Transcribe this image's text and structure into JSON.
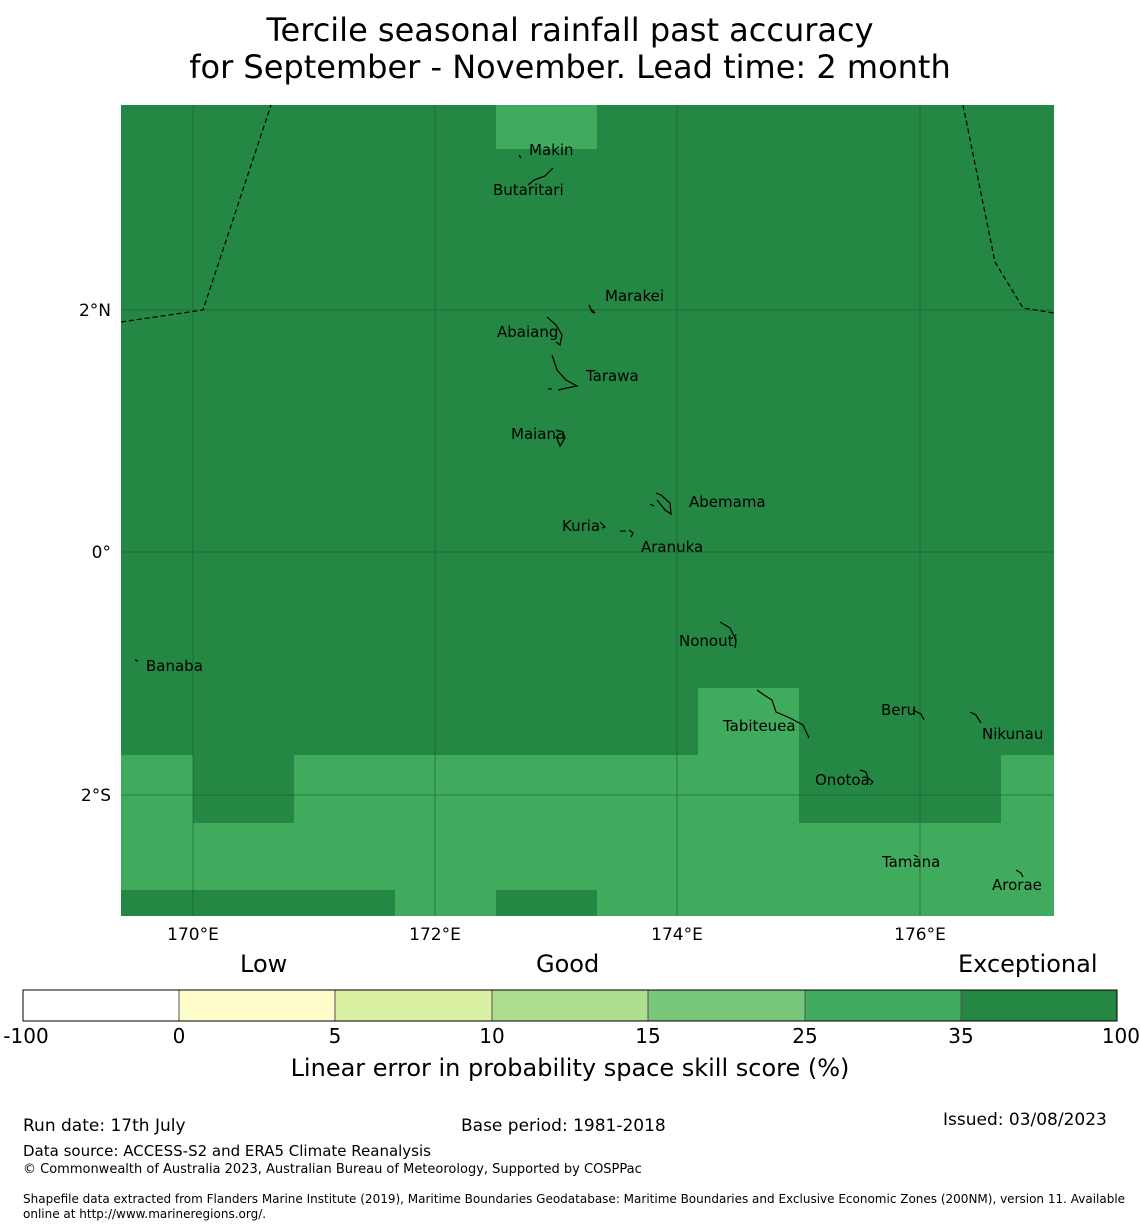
{
  "title": {
    "line1": "Tercile seasonal rainfall past accuracy",
    "line2": "for September - November. Lead time: 2 month"
  },
  "map": {
    "lon_ticks": [
      "170°E",
      "172°E",
      "174°E",
      "176°E"
    ],
    "lat_ticks": [
      "2°N",
      "0°",
      "2°S"
    ],
    "places": [
      {
        "name": "Makin"
      },
      {
        "name": "Butaritari"
      },
      {
        "name": "Marakei"
      },
      {
        "name": "Abaiang"
      },
      {
        "name": "Tarawa"
      },
      {
        "name": "Maiana"
      },
      {
        "name": "Abemama"
      },
      {
        "name": "Kuria"
      },
      {
        "name": "Aranuka"
      },
      {
        "name": "Nonouti"
      },
      {
        "name": "Banaba"
      },
      {
        "name": "Beru"
      },
      {
        "name": "Tabiteuea"
      },
      {
        "name": "Nikunau"
      },
      {
        "name": "Onotoa"
      },
      {
        "name": "Tamana"
      },
      {
        "name": "Arorae"
      }
    ],
    "colors": {
      "cat_35_100": "#248743",
      "cat_25_35": "#40aa5d"
    }
  },
  "colorbar": {
    "categories": [
      "Low",
      "Good",
      "Exceptional"
    ],
    "ticks": [
      "-100",
      "0",
      "5",
      "10",
      "15",
      "25",
      "35",
      "100"
    ],
    "colors": [
      "#ffffff",
      "#fffccc",
      "#d9f0a3",
      "#addd8e",
      "#78c679",
      "#40aa5d",
      "#248743"
    ],
    "label": "Linear error in probability space skill score (%)"
  },
  "footer": {
    "run_date": "Run date: 17th July",
    "base_period": "Base period: 1981-2018",
    "issued": "Issued: 03/08/2023",
    "data_source": "Data source: ACCESS-S2 and ERA5 Climate Reanalysis",
    "copyright": "© Commonwealth of Australia 2023, Australian Bureau of Meteorology, Supported by COSPPac",
    "shapefile": "Shapefile data extracted from Flanders Marine Institute (2019), Maritime Boundaries Geodatabase: Maritime Boundaries and Exclusive Economic Zones (200NM), version 11. Available online at http://www.marineregions.org/."
  }
}
